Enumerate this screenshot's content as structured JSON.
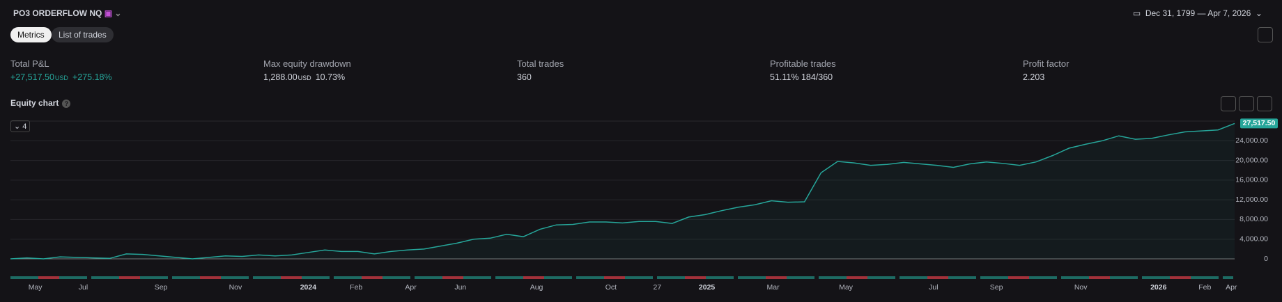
{
  "header": {
    "title": "PO3 ORDERFLOW NQ",
    "date_range": "Dec 31, 1799 — Apr 7, 2026"
  },
  "tabs": [
    "Metrics",
    "List of trades"
  ],
  "metrics": [
    {
      "label": "Total P&L",
      "value": "+27,517.50",
      "unit": "USD",
      "extra": "+275.18%"
    },
    {
      "label": "Max equity drawdown",
      "value": "1,288.00",
      "unit": "USD",
      "extra": "10.73%"
    },
    {
      "label": "Total trades",
      "value": "360"
    },
    {
      "label": "Profitable trades",
      "value": "51.11%",
      "extra": "184/360"
    },
    {
      "label": "Profit factor",
      "value": "2.203"
    }
  ],
  "chart_label": "Equity chart",
  "collapse_button": "4",
  "chart_data": {
    "type": "area",
    "color": "#26a69a",
    "series": [
      {
        "name": "Equity",
        "color": "#26a69a",
        "values": [
          0,
          200,
          0,
          400,
          300,
          200,
          100,
          1000,
          900,
          600,
          300,
          0,
          300,
          600,
          500,
          800,
          600,
          800,
          1300,
          1800,
          1500,
          1500,
          1000,
          1500,
          1800,
          2000,
          2600,
          3200,
          4000,
          4200,
          5000,
          4500,
          6000,
          6900,
          7000,
          7500,
          7500,
          7300,
          7600,
          7600,
          7200,
          8500,
          9000,
          9800,
          10500,
          11000,
          11800,
          11500,
          11600,
          17500,
          19800,
          19500,
          19000,
          19200,
          19600,
          19300,
          19000,
          18600,
          19300,
          19700,
          19400,
          19000,
          19700,
          21000,
          22500,
          23300,
          24000,
          25000,
          24300,
          24500,
          25200,
          25800,
          26000,
          26200,
          27517.5
        ]
      }
    ],
    "price_label": {
      "value": 27517.5,
      "label": "27,517.50"
    },
    "xlim": [
      0,
      74
    ],
    "xticks": [
      {
        "value": 1.5,
        "label": "May"
      },
      {
        "value": 4.4,
        "label": "Jul"
      },
      {
        "value": 9.1,
        "label": "Sep"
      },
      {
        "value": 13.6,
        "label": "Nov"
      },
      {
        "value": 18,
        "label": "2024"
      },
      {
        "value": 20.9,
        "label": "Feb"
      },
      {
        "value": 24.2,
        "label": "Apr"
      },
      {
        "value": 27.2,
        "label": "Jun"
      },
      {
        "value": 31.8,
        "label": "Aug"
      },
      {
        "value": 36.3,
        "label": "Oct"
      },
      {
        "value": 39.1,
        "label": "27"
      },
      {
        "value": 42.1,
        "label": "2025"
      },
      {
        "value": 46.1,
        "label": "Mar"
      },
      {
        "value": 50.5,
        "label": "May"
      },
      {
        "value": 55.8,
        "label": "Jul"
      },
      {
        "value": 59.6,
        "label": "Sep"
      },
      {
        "value": 64.7,
        "label": "Nov"
      },
      {
        "value": 69.4,
        "label": "2026"
      },
      {
        "value": 72.2,
        "label": "Feb"
      },
      {
        "value": 73.8,
        "label": "Apr"
      }
    ],
    "ylim": [
      0,
      28000
    ],
    "yticks": [
      0,
      {
        "value": 4000,
        "label": "4,000.00"
      },
      {
        "value": 8000,
        "label": "8,000.00"
      },
      {
        "value": 12000,
        "label": "12,000.00"
      },
      {
        "value": 16000,
        "label": "16,000.00"
      },
      {
        "value": 20000,
        "label": "20,000.00"
      },
      {
        "value": 24000,
        "label": "24,000.00"
      }
    ],
    "grid": true
  }
}
